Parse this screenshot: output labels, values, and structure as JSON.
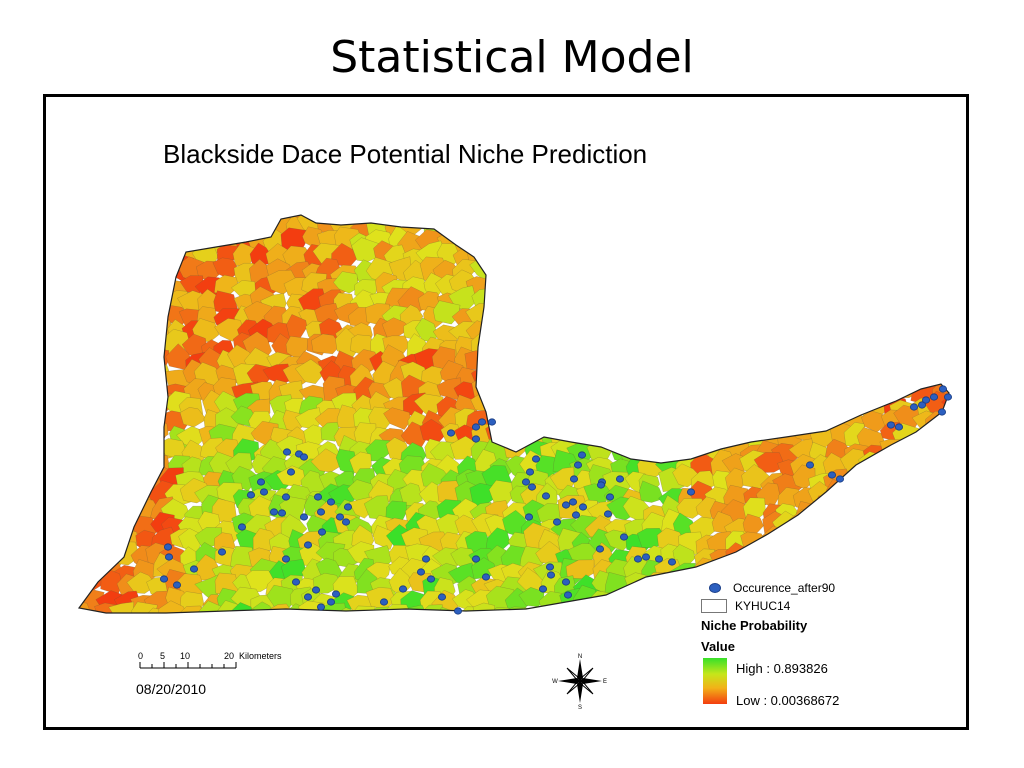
{
  "slide": {
    "title": "Statistical Model"
  },
  "map": {
    "title": "Blackside Dace Potential Niche Prediction",
    "date": "08/20/2010",
    "scale_bar": {
      "ticks": [
        "0",
        "5",
        "10",
        "20"
      ],
      "unit": "Kilometers"
    },
    "compass": {
      "north": "N",
      "south": "S",
      "east": "E",
      "west": "W"
    }
  },
  "legend": {
    "occurrence_label": "Occurence_after90",
    "boundary_label": "KYHUC14",
    "section_title": "Niche Probability",
    "value_title": "Value",
    "high_label": "High : 0.893826",
    "low_label": "Low : 0.00368672"
  },
  "colors": {
    "high": "#36e02a",
    "mid": "#dfe21c",
    "low": "#f33d10",
    "occurrence_point": "#2c5fbf"
  }
}
